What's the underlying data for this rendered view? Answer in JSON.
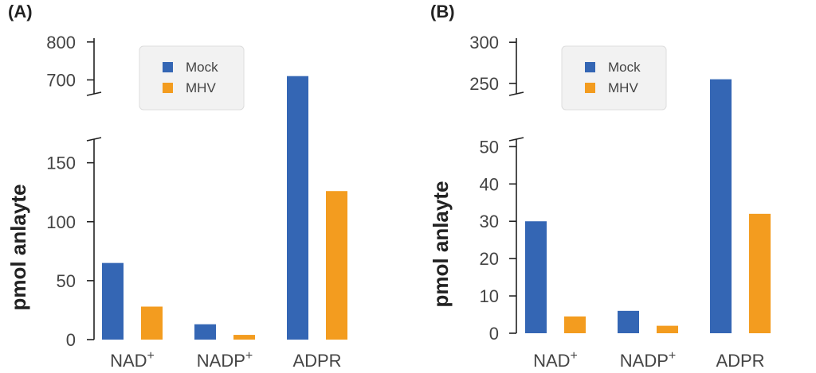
{
  "chart_data": [
    {
      "type": "bar",
      "panel_label": "(A)",
      "ylabel": "pmol anlayte",
      "categories": [
        {
          "text": "NAD",
          "sup": "+"
        },
        {
          "text": "NADP",
          "sup": "+"
        },
        {
          "text": "ADPR",
          "sup": ""
        }
      ],
      "series": [
        {
          "name": "Mock",
          "color": "#3466b4",
          "values": [
            65,
            13,
            710
          ]
        },
        {
          "name": "MHV",
          "color": "#f39c1f",
          "values": [
            28,
            4,
            126
          ]
        }
      ],
      "y_axis": {
        "broken": true,
        "lower_range": [
          0,
          170
        ],
        "lower_ticks": [
          {
            "value": 0,
            "label": "0"
          },
          {
            "value": 50,
            "label": "50"
          },
          {
            "value": 100,
            "label": "100"
          },
          {
            "value": 150,
            "label": "150"
          }
        ],
        "upper_range": [
          680,
          810
        ],
        "upper_ticks": [
          {
            "value": 700,
            "label": "700"
          },
          {
            "value": 800,
            "label": "800"
          }
        ]
      },
      "legend_position": "top-left",
      "grid": false
    },
    {
      "type": "bar",
      "panel_label": "(B)",
      "ylabel": "pmol anlayte",
      "categories": [
        {
          "text": "NAD",
          "sup": "+"
        },
        {
          "text": "NADP",
          "sup": "+"
        },
        {
          "text": "ADPR",
          "sup": ""
        }
      ],
      "series": [
        {
          "name": "Mock",
          "color": "#3466b4",
          "values": [
            30,
            6,
            255
          ]
        },
        {
          "name": "MHV",
          "color": "#f39c1f",
          "values": [
            4.5,
            2,
            32
          ]
        }
      ],
      "y_axis": {
        "broken": true,
        "lower_range": [
          0,
          52
        ],
        "lower_ticks": [
          {
            "value": 0,
            "label": "0"
          },
          {
            "value": 10,
            "label": "10"
          },
          {
            "value": 20,
            "label": "20"
          },
          {
            "value": 30,
            "label": "30"
          },
          {
            "value": 40,
            "label": "40"
          },
          {
            "value": 50,
            "label": "50"
          }
        ],
        "upper_range": [
          245,
          305
        ],
        "upper_ticks": [
          {
            "value": 250,
            "label": "250"
          },
          {
            "value": 300,
            "label": "300"
          }
        ]
      },
      "legend_position": "top-left",
      "grid": false
    }
  ]
}
